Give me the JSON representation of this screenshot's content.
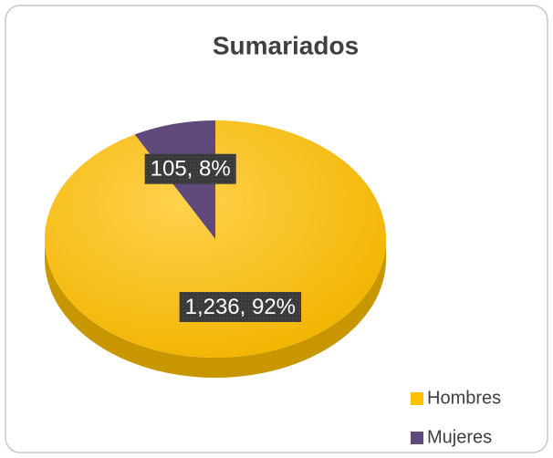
{
  "chart_data": {
    "type": "pie",
    "title": "Sumariados",
    "categories": [
      "Hombres",
      "Mujeres"
    ],
    "values": [
      1236,
      105
    ],
    "value_labels": [
      "1,236, 92%",
      "105, 8%"
    ],
    "colors": [
      "#FFC000",
      "#604A7B"
    ],
    "legend": "bottom-right"
  }
}
